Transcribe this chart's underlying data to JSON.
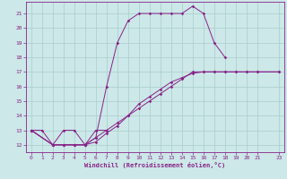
{
  "xlabel": "Windchill (Refroidissement éolien,°C)",
  "background_color": "#cce8e8",
  "grid_color": "#aacccc",
  "line_color": "#882288",
  "spine_color": "#882288",
  "xlim": [
    -0.5,
    23.5
  ],
  "ylim": [
    11.5,
    21.8
  ],
  "xticks": [
    0,
    1,
    2,
    3,
    4,
    5,
    6,
    7,
    8,
    9,
    10,
    11,
    12,
    13,
    14,
    15,
    16,
    17,
    18,
    19,
    20,
    21,
    23
  ],
  "yticks": [
    12,
    13,
    14,
    15,
    16,
    17,
    18,
    19,
    20,
    21
  ],
  "curves": [
    {
      "x": [
        0,
        1,
        2,
        3,
        4,
        5,
        6,
        7,
        8,
        9,
        10,
        11,
        12,
        13,
        14,
        15,
        16,
        17,
        18
      ],
      "y": [
        13.0,
        13.0,
        12.0,
        13.0,
        13.0,
        12.0,
        12.5,
        16.0,
        19.0,
        20.5,
        21.0,
        21.0,
        21.0,
        21.0,
        21.0,
        21.5,
        21.0,
        19.0,
        18.0
      ]
    },
    {
      "x": [
        0,
        2,
        3,
        4,
        5,
        6,
        7
      ],
      "y": [
        13.0,
        12.0,
        12.0,
        12.0,
        12.0,
        13.0,
        13.0
      ]
    },
    {
      "x": [
        0,
        2,
        3,
        4,
        5,
        6,
        7,
        8,
        9,
        10,
        11,
        12,
        13,
        14,
        15,
        16,
        17,
        18,
        19,
        20,
        21,
        23
      ],
      "y": [
        13.0,
        12.0,
        12.0,
        12.0,
        12.0,
        12.5,
        13.0,
        13.5,
        14.0,
        14.5,
        15.0,
        15.5,
        16.0,
        16.5,
        17.0,
        17.0,
        17.0,
        17.0,
        17.0,
        17.0,
        17.0,
        17.0
      ]
    },
    {
      "x": [
        0,
        2,
        3,
        4,
        5,
        6,
        7,
        8,
        9,
        10,
        11,
        12,
        13,
        14,
        15,
        16,
        17,
        18,
        19,
        20,
        21,
        23
      ],
      "y": [
        13.0,
        12.0,
        12.0,
        12.0,
        12.0,
        12.2,
        12.8,
        13.3,
        14.0,
        14.8,
        15.3,
        15.8,
        16.3,
        16.6,
        16.9,
        17.0,
        17.0,
        17.0,
        17.0,
        17.0,
        17.0,
        17.0
      ]
    }
  ]
}
